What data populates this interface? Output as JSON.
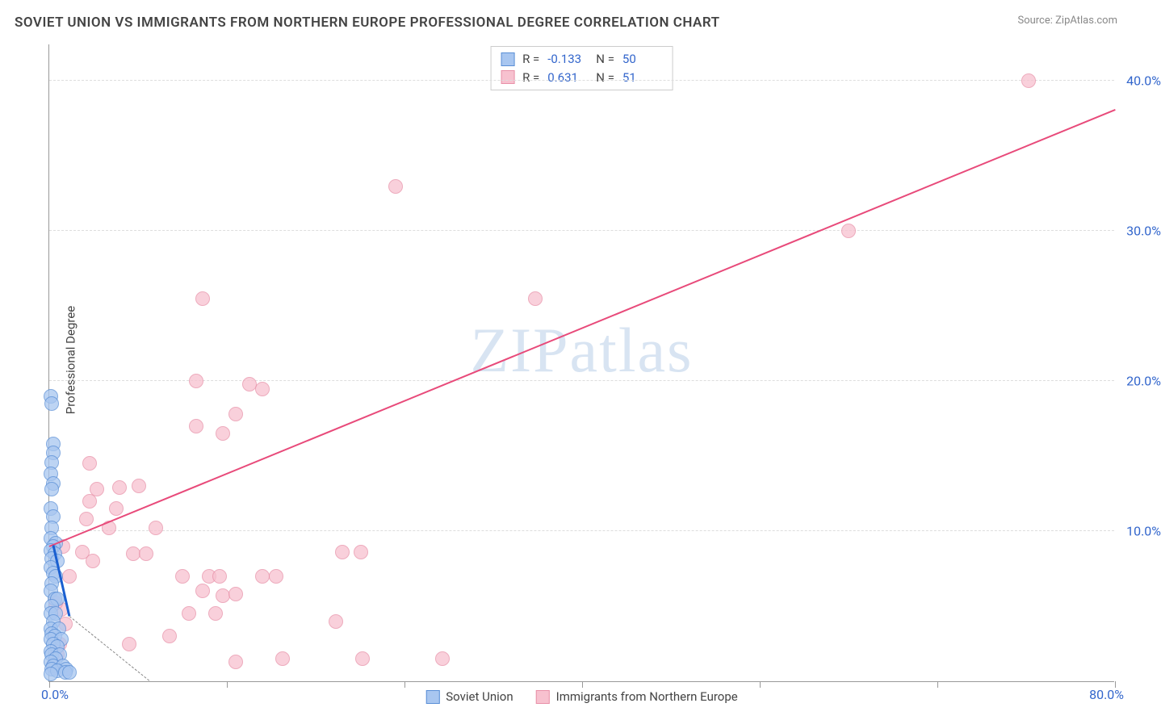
{
  "title": "SOVIET UNION VS IMMIGRANTS FROM NORTHERN EUROPE PROFESSIONAL DEGREE CORRELATION CHART",
  "source_label": "Source: ZipAtlas.com",
  "watermark": "ZIPatlas",
  "y_axis_title": "Professional Degree",
  "x_range": [
    0,
    80
  ],
  "y_range": [
    0,
    42.5
  ],
  "x_ticks": [
    0,
    13.33,
    26.67,
    40,
    53.33,
    66.67,
    80
  ],
  "y_ticks": [
    10,
    20,
    30,
    40
  ],
  "y_tick_labels": [
    "10.0%",
    "20.0%",
    "30.0%",
    "40.0%"
  ],
  "x_label_min": "0.0%",
  "x_label_max": "80.0%",
  "colors": {
    "series_a_fill": "#a8c6f0",
    "series_a_stroke": "#5a8fd6",
    "series_a_line": "#1a5fd0",
    "series_b_fill": "#f7c1cf",
    "series_b_stroke": "#e890a8",
    "series_b_line": "#e84a7a",
    "axis_text": "#3366cc",
    "grid": "#dddddd",
    "title_color": "#444444"
  },
  "marker_radius": 9,
  "series_a": {
    "name": "Soviet Union",
    "r_label": "R =",
    "r_value": "-0.133",
    "n_label": "N =",
    "n_value": "50",
    "regression": {
      "x1": 0.3,
      "y1": 9.0,
      "x2": 1.5,
      "y2": 4.3
    },
    "dashed_extension": {
      "x1": 1.5,
      "y1": 4.3,
      "x2": 7.5,
      "y2": 0
    },
    "points": [
      [
        0.1,
        19.0
      ],
      [
        0.2,
        18.5
      ],
      [
        0.3,
        15.8
      ],
      [
        0.3,
        15.2
      ],
      [
        0.2,
        14.6
      ],
      [
        0.1,
        13.8
      ],
      [
        0.3,
        13.2
      ],
      [
        0.2,
        12.8
      ],
      [
        0.1,
        11.5
      ],
      [
        0.3,
        11.0
      ],
      [
        0.2,
        10.2
      ],
      [
        0.1,
        9.5
      ],
      [
        0.5,
        9.2
      ],
      [
        0.3,
        9.0
      ],
      [
        0.1,
        8.7
      ],
      [
        0.4,
        8.5
      ],
      [
        0.2,
        8.2
      ],
      [
        0.6,
        8.0
      ],
      [
        0.1,
        7.6
      ],
      [
        0.3,
        7.2
      ],
      [
        0.5,
        7.0
      ],
      [
        0.2,
        6.5
      ],
      [
        0.1,
        6.0
      ],
      [
        0.4,
        5.5
      ],
      [
        0.6,
        5.5
      ],
      [
        0.2,
        5.0
      ],
      [
        0.1,
        4.5
      ],
      [
        0.5,
        4.5
      ],
      [
        0.3,
        4.0
      ],
      [
        0.1,
        3.5
      ],
      [
        0.7,
        3.5
      ],
      [
        0.2,
        3.2
      ],
      [
        0.4,
        3.0
      ],
      [
        0.1,
        2.8
      ],
      [
        0.9,
        2.8
      ],
      [
        0.3,
        2.5
      ],
      [
        0.6,
        2.3
      ],
      [
        0.1,
        2.0
      ],
      [
        0.2,
        1.8
      ],
      [
        0.8,
        1.8
      ],
      [
        0.5,
        1.5
      ],
      [
        0.1,
        1.3
      ],
      [
        0.3,
        1.0
      ],
      [
        1.0,
        1.0
      ],
      [
        0.2,
        0.8
      ],
      [
        1.3,
        0.8
      ],
      [
        0.6,
        0.7
      ],
      [
        0.1,
        0.5
      ],
      [
        1.2,
        0.6
      ],
      [
        1.5,
        0.6
      ]
    ]
  },
  "series_b": {
    "name": "Immigrants from Northern Europe",
    "r_label": "R =",
    "r_value": "0.631",
    "n_label": "N =",
    "n_value": "51",
    "regression": {
      "x1": 0,
      "y1": 8.9,
      "x2": 80,
      "y2": 38.0
    },
    "points": [
      [
        73.5,
        40.0
      ],
      [
        26.0,
        33.0
      ],
      [
        60.0,
        30.0
      ],
      [
        11.5,
        25.5
      ],
      [
        36.5,
        25.5
      ],
      [
        11.0,
        20.0
      ],
      [
        15.0,
        19.8
      ],
      [
        16.0,
        19.5
      ],
      [
        14.0,
        17.8
      ],
      [
        11.0,
        17.0
      ],
      [
        13.0,
        16.5
      ],
      [
        3.0,
        14.5
      ],
      [
        3.6,
        12.8
      ],
      [
        5.3,
        12.9
      ],
      [
        6.7,
        13.0
      ],
      [
        3.0,
        12.0
      ],
      [
        5.0,
        11.5
      ],
      [
        2.8,
        10.8
      ],
      [
        8.0,
        10.2
      ],
      [
        4.5,
        10.2
      ],
      [
        2.5,
        8.6
      ],
      [
        6.3,
        8.5
      ],
      [
        7.3,
        8.5
      ],
      [
        3.3,
        8.0
      ],
      [
        1.5,
        7.0
      ],
      [
        10.0,
        7.0
      ],
      [
        12.0,
        7.0
      ],
      [
        12.8,
        7.0
      ],
      [
        16.0,
        7.0
      ],
      [
        17.0,
        7.0
      ],
      [
        22.0,
        8.6
      ],
      [
        23.4,
        8.6
      ],
      [
        11.5,
        6.0
      ],
      [
        13.0,
        5.7
      ],
      [
        14.0,
        5.8
      ],
      [
        10.5,
        4.5
      ],
      [
        12.5,
        4.5
      ],
      [
        9.0,
        3.0
      ],
      [
        21.5,
        4.0
      ],
      [
        6.0,
        2.5
      ],
      [
        14.0,
        1.3
      ],
      [
        17.5,
        1.5
      ],
      [
        23.5,
        1.5
      ],
      [
        29.5,
        1.5
      ],
      [
        0.8,
        2.5
      ],
      [
        0.6,
        1.8
      ],
      [
        0.3,
        1.0
      ],
      [
        0.9,
        4.8
      ],
      [
        1.2,
        3.8
      ],
      [
        1.0,
        9.0
      ],
      [
        0.5,
        5.2
      ]
    ]
  }
}
